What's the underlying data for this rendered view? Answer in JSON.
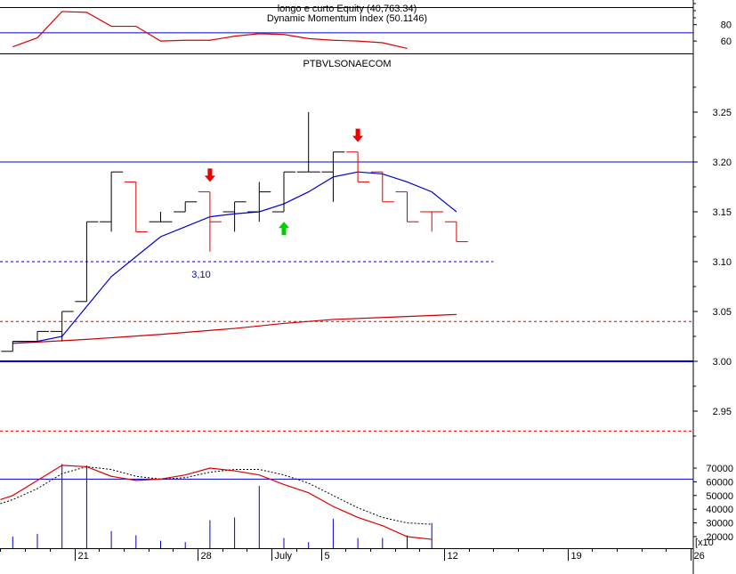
{
  "top_panel": {
    "title_equity": "longo e curto Equity (40,763.34)",
    "title_dmi": "Dynamic Momentum Index (50.1146)",
    "y_ticks": [
      60,
      80
    ],
    "ylim": [
      45,
      110
    ],
    "hline": 70,
    "dmi_line": [
      {
        "t": 0,
        "v": 53
      },
      {
        "t": 1,
        "v": 64
      },
      {
        "t": 2,
        "v": 96
      },
      {
        "t": 3,
        "v": 95
      },
      {
        "t": 4,
        "v": 78
      },
      {
        "t": 5,
        "v": 78
      },
      {
        "t": 6,
        "v": 60
      },
      {
        "t": 7,
        "v": 61
      },
      {
        "t": 8,
        "v": 61
      },
      {
        "t": 9,
        "v": 66
      },
      {
        "t": 10,
        "v": 69
      },
      {
        "t": 11,
        "v": 68
      },
      {
        "t": 12,
        "v": 63
      },
      {
        "t": 13,
        "v": 61
      },
      {
        "t": 14,
        "v": 60
      },
      {
        "t": 15,
        "v": 58
      },
      {
        "t": 16,
        "v": 51
      }
    ]
  },
  "chart_data": {
    "type": "bar",
    "title": "PTBVLSONAECOM",
    "y_ticks": [
      "3.25",
      "3.20",
      "3.15",
      "3.10",
      "3.05",
      "3.00",
      "2.95"
    ],
    "ylim": [
      2.915,
      3.28
    ],
    "annotation": "3,10",
    "x_ticks": [
      {
        "label": "21",
        "t": 2.5
      },
      {
        "label": "28",
        "t": 7.5
      },
      {
        "label": "July",
        "t": 10.5
      },
      {
        "label": "5",
        "t": 12.5
      },
      {
        "label": "12",
        "t": 17.5
      },
      {
        "label": "19",
        "t": 22.5
      },
      {
        "label": "26",
        "t": 27.5
      }
    ],
    "bars": [
      {
        "t": 0,
        "o": 3.01,
        "h": 3.02,
        "l": 3.01,
        "c": 3.02,
        "color": "#000000"
      },
      {
        "t": 1,
        "o": 3.02,
        "h": 3.03,
        "l": 3.02,
        "c": 3.03,
        "color": "#000000"
      },
      {
        "t": 2,
        "o": 3.03,
        "h": 3.05,
        "l": 3.02,
        "c": 3.05,
        "color": "#000000"
      },
      {
        "t": 3,
        "o": 3.06,
        "h": 3.14,
        "l": 3.06,
        "c": 3.14,
        "color": "#000000"
      },
      {
        "t": 4,
        "o": 3.14,
        "h": 3.19,
        "l": 3.13,
        "c": 3.19,
        "color": "#000000"
      },
      {
        "t": 5,
        "o": 3.18,
        "h": 3.18,
        "l": 3.13,
        "c": 3.13,
        "color": "#dd0000"
      },
      {
        "t": 6,
        "o": 3.14,
        "h": 3.15,
        "l": 3.14,
        "c": 3.14,
        "color": "#000000"
      },
      {
        "t": 7,
        "o": 3.15,
        "h": 3.16,
        "l": 3.15,
        "c": 3.16,
        "color": "#000000"
      },
      {
        "t": 8,
        "o": 3.17,
        "h": 3.17,
        "l": 3.11,
        "c": 3.14,
        "color": "#dd0000"
      },
      {
        "t": 9,
        "o": 3.15,
        "h": 3.16,
        "l": 3.13,
        "c": 3.16,
        "color": "#000000"
      },
      {
        "t": 10,
        "o": 3.15,
        "h": 3.18,
        "l": 3.14,
        "c": 3.17,
        "color": "#000000"
      },
      {
        "t": 11,
        "o": 3.15,
        "h": 3.19,
        "l": 3.15,
        "c": 3.19,
        "color": "#000000"
      },
      {
        "t": 12,
        "o": 3.19,
        "h": 3.25,
        "l": 3.19,
        "c": 3.19,
        "color": "#000000"
      },
      {
        "t": 13,
        "o": 3.19,
        "h": 3.21,
        "l": 3.16,
        "c": 3.21,
        "color": "#000000"
      },
      {
        "t": 14,
        "o": 3.21,
        "h": 3.21,
        "l": 3.18,
        "c": 3.18,
        "color": "#dd0000"
      },
      {
        "t": 15,
        "o": 3.19,
        "h": 3.19,
        "l": 3.16,
        "c": 3.16,
        "color": "#dd0000"
      },
      {
        "t": 16,
        "o": 3.17,
        "h": 3.17,
        "l": 3.14,
        "c": 3.14,
        "color": "#dd0000"
      },
      {
        "t": 17,
        "o": 3.15,
        "h": 3.15,
        "l": 3.13,
        "c": 3.15,
        "color": "#dd0000"
      },
      {
        "t": 18,
        "o": 3.14,
        "h": 3.14,
        "l": 3.12,
        "c": 3.12,
        "color": "#dd0000"
      }
    ],
    "blue_ma": [
      {
        "t": 0,
        "v": 3.02
      },
      {
        "t": 1,
        "v": 3.02
      },
      {
        "t": 2,
        "v": 3.025
      },
      {
        "t": 3,
        "v": 3.055
      },
      {
        "t": 4,
        "v": 3.085
      },
      {
        "t": 5,
        "v": 3.105
      },
      {
        "t": 6,
        "v": 3.125
      },
      {
        "t": 7,
        "v": 3.135
      },
      {
        "t": 8,
        "v": 3.145
      },
      {
        "t": 9,
        "v": 3.148
      },
      {
        "t": 10,
        "v": 3.15
      },
      {
        "t": 11,
        "v": 3.158
      },
      {
        "t": 12,
        "v": 3.17
      },
      {
        "t": 13,
        "v": 3.185
      },
      {
        "t": 14,
        "v": 3.19
      },
      {
        "t": 15,
        "v": 3.188
      },
      {
        "t": 16,
        "v": 3.18
      },
      {
        "t": 17,
        "v": 3.17
      },
      {
        "t": 18,
        "v": 3.15
      }
    ],
    "red_ma": [
      {
        "t": 0,
        "v": 3.018
      },
      {
        "t": 3,
        "v": 3.022
      },
      {
        "t": 6,
        "v": 3.027
      },
      {
        "t": 9,
        "v": 3.033
      },
      {
        "t": 11,
        "v": 3.038
      },
      {
        "t": 13,
        "v": 3.042
      },
      {
        "t": 15,
        "v": 3.044
      },
      {
        "t": 17,
        "v": 3.046
      },
      {
        "t": 18,
        "v": 3.047
      }
    ],
    "hlines": [
      {
        "v": 3.2,
        "color": "#0000cc",
        "style": "solid",
        "width": 1
      },
      {
        "v": 3.0,
        "color": "#0000cc",
        "style": "solid",
        "width": 2
      },
      {
        "v": 3.1,
        "color": "#0000cc",
        "style": "dashed",
        "width": 1,
        "t_end": 19.5
      },
      {
        "v": 3.04,
        "color": "#dd0000",
        "style": "dashed",
        "width": 1
      },
      {
        "v": 2.93,
        "color": "#dd0000",
        "style": "dashed",
        "width": 1
      }
    ],
    "sell_arrows": [
      {
        "t": 8,
        "v": 3.18
      },
      {
        "t": 14,
        "v": 3.22
      }
    ],
    "buy_arrows": [
      {
        "t": 11,
        "v": 3.14
      }
    ]
  },
  "volume_panel": {
    "y_ticks": [
      "20000",
      "30000",
      "40000",
      "50000",
      "60000",
      "70000"
    ],
    "unit": "[x10",
    "ylim": [
      13000,
      78000
    ],
    "hline": 62000,
    "volumes": [
      {
        "t": 0,
        "v": 20000
      },
      {
        "t": 1,
        "v": 22000
      },
      {
        "t": 2,
        "v": 73000
      },
      {
        "t": 3,
        "v": 72000
      },
      {
        "t": 4,
        "v": 24000
      },
      {
        "t": 5,
        "v": 21000
      },
      {
        "t": 6,
        "v": 17000
      },
      {
        "t": 7,
        "v": 16000
      },
      {
        "t": 8,
        "v": 32000
      },
      {
        "t": 9,
        "v": 34000
      },
      {
        "t": 10,
        "v": 57000
      },
      {
        "t": 11,
        "v": 19000
      },
      {
        "t": 12,
        "v": 16000
      },
      {
        "t": 13,
        "v": 33000
      },
      {
        "t": 14,
        "v": 19000
      },
      {
        "t": 15,
        "v": 19000
      },
      {
        "t": 16,
        "v": 21000
      },
      {
        "t": 17,
        "v": 30000
      }
    ],
    "red_line": [
      {
        "t": -0.5,
        "v": 47000
      },
      {
        "t": 0,
        "v": 50000
      },
      {
        "t": 1,
        "v": 61000
      },
      {
        "t": 2,
        "v": 72000
      },
      {
        "t": 3,
        "v": 71000
      },
      {
        "t": 4,
        "v": 64000
      },
      {
        "t": 5,
        "v": 61000
      },
      {
        "t": 6,
        "v": 62000
      },
      {
        "t": 7,
        "v": 65000
      },
      {
        "t": 8,
        "v": 70000
      },
      {
        "t": 9,
        "v": 68000
      },
      {
        "t": 10,
        "v": 65000
      },
      {
        "t": 11,
        "v": 58000
      },
      {
        "t": 12,
        "v": 52000
      },
      {
        "t": 13,
        "v": 42000
      },
      {
        "t": 14,
        "v": 34000
      },
      {
        "t": 15,
        "v": 28000
      },
      {
        "t": 16,
        "v": 20000
      },
      {
        "t": 17,
        "v": 18000
      }
    ],
    "dotted_line": [
      {
        "t": -0.5,
        "v": 44000
      },
      {
        "t": 0,
        "v": 47000
      },
      {
        "t": 1,
        "v": 55000
      },
      {
        "t": 2,
        "v": 66000
      },
      {
        "t": 3,
        "v": 71000
      },
      {
        "t": 4,
        "v": 69000
      },
      {
        "t": 5,
        "v": 64000
      },
      {
        "t": 6,
        "v": 62000
      },
      {
        "t": 7,
        "v": 63000
      },
      {
        "t": 8,
        "v": 67000
      },
      {
        "t": 9,
        "v": 69000
      },
      {
        "t": 10,
        "v": 69000
      },
      {
        "t": 11,
        "v": 65000
      },
      {
        "t": 12,
        "v": 59000
      },
      {
        "t": 13,
        "v": 50000
      },
      {
        "t": 14,
        "v": 41000
      },
      {
        "t": 15,
        "v": 34000
      },
      {
        "t": 16,
        "v": 30000
      },
      {
        "t": 17,
        "v": 29000
      }
    ]
  }
}
